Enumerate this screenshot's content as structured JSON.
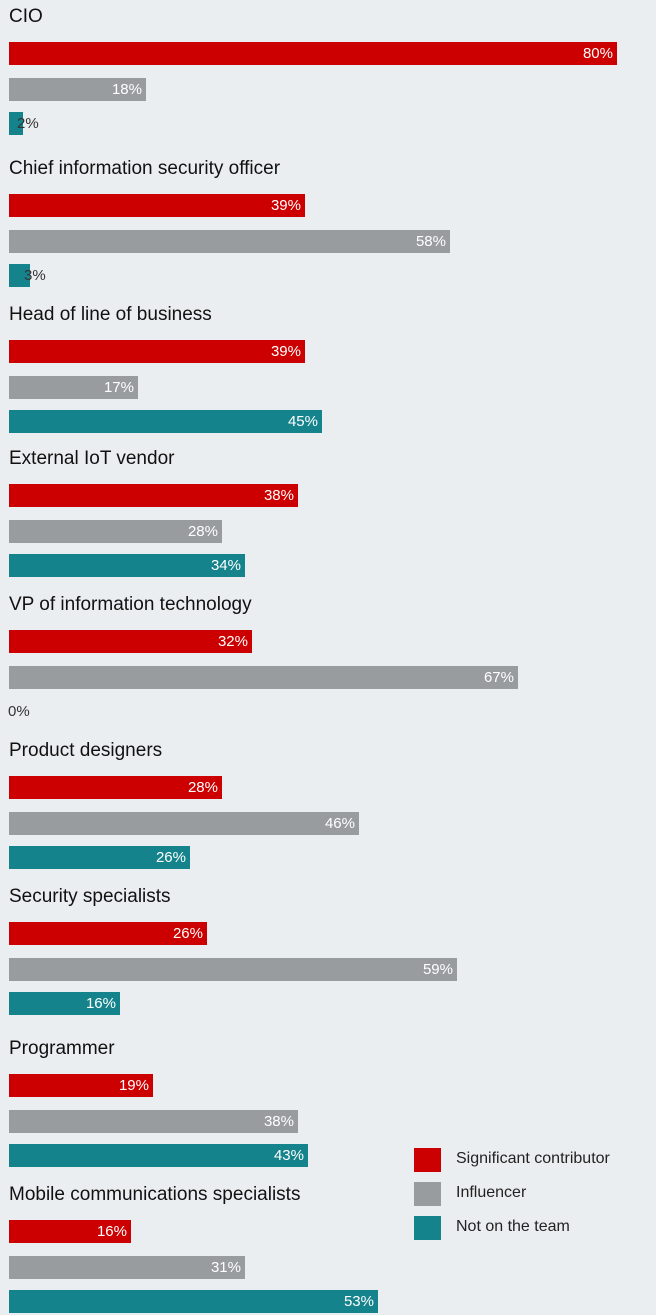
{
  "chart_data": {
    "type": "bar",
    "orientation": "horizontal",
    "xlim": [
      0,
      100
    ],
    "categories": [
      "CIO",
      "Chief information security officer",
      "Head of line of business",
      "External IoT vendor",
      "VP of information technology",
      "Product designers",
      "Security specialists",
      "Programmer",
      "Mobile communications specialists"
    ],
    "series": [
      {
        "name": "Significant contributor",
        "color": "#cc0000",
        "values": [
          80,
          39,
          39,
          38,
          32,
          28,
          26,
          19,
          16
        ]
      },
      {
        "name": "Influencer",
        "color": "#999c9f",
        "values": [
          18,
          58,
          17,
          28,
          67,
          46,
          59,
          38,
          31
        ]
      },
      {
        "name": "Not on the team",
        "color": "#14838c",
        "values": [
          2,
          3,
          45,
          34,
          0,
          26,
          16,
          43,
          53
        ]
      }
    ],
    "value_suffix": "%",
    "legend_position": "bottom-right"
  }
}
